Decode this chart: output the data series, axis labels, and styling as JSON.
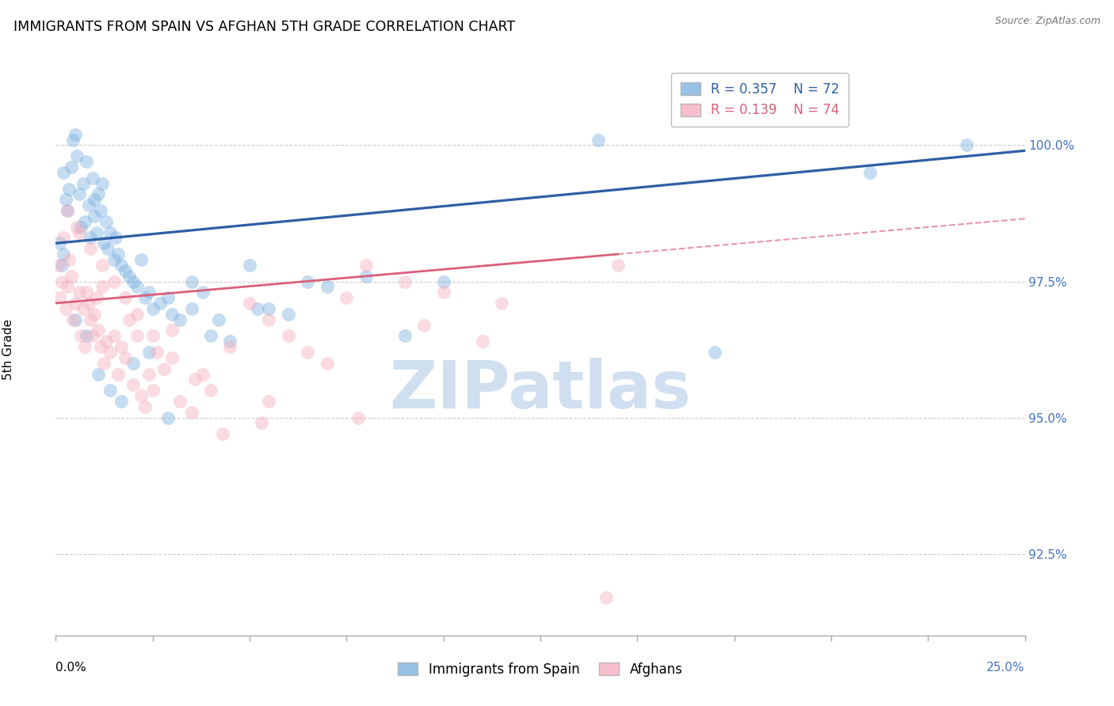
{
  "title": "IMMIGRANTS FROM SPAIN VS AFGHAN 5TH GRADE CORRELATION CHART",
  "source": "Source: ZipAtlas.com",
  "ylabel": "5th Grade",
  "xlim": [
    0.0,
    25.0
  ],
  "ylim": [
    91.0,
    101.5
  ],
  "yticks": [
    92.5,
    95.0,
    97.5,
    100.0
  ],
  "ytick_labels": [
    "92.5%",
    "95.0%",
    "97.5%",
    "100.0%"
  ],
  "xtick_positions": [
    0,
    2.5,
    5.0,
    7.5,
    10.0,
    12.5,
    15.0,
    17.5,
    20.0,
    22.5,
    25.0
  ],
  "legend_r_blue": "R = 0.357",
  "legend_n_blue": "N = 72",
  "legend_r_pink": "R = 0.139",
  "legend_n_pink": "N = 74",
  "legend_label_blue": "Immigrants from Spain",
  "legend_label_pink": "Afghans",
  "blue_face_color": "#7fb3e0",
  "pink_face_color": "#f5b0c0",
  "blue_line_color": "#2e5fa3",
  "pink_line_color": "#d9607a",
  "axis_tick_color": "#4472c4",
  "watermark_color": "#d0dff0",
  "blue_scatter_x": [
    0.1,
    0.15,
    0.2,
    0.2,
    0.25,
    0.3,
    0.35,
    0.4,
    0.45,
    0.5,
    0.55,
    0.6,
    0.65,
    0.7,
    0.75,
    0.8,
    0.85,
    0.9,
    0.95,
    1.0,
    1.0,
    1.05,
    1.1,
    1.15,
    1.2,
    1.25,
    1.3,
    1.35,
    1.4,
    1.5,
    1.55,
    1.6,
    1.7,
    1.8,
    1.9,
    2.0,
    2.1,
    2.2,
    2.3,
    2.4,
    2.5,
    2.7,
    2.9,
    3.0,
    3.2,
    3.5,
    3.8,
    4.0,
    4.5,
    5.0,
    5.5,
    6.0,
    6.5,
    7.0,
    8.0,
    9.0,
    10.0,
    14.0,
    17.0,
    21.0,
    23.5,
    0.5,
    0.8,
    1.1,
    1.4,
    1.7,
    2.0,
    2.4,
    2.9,
    3.5,
    4.2,
    5.2
  ],
  "blue_scatter_y": [
    98.2,
    97.8,
    99.5,
    98.0,
    99.0,
    98.8,
    99.2,
    99.6,
    100.1,
    100.2,
    99.8,
    99.1,
    98.5,
    99.3,
    98.6,
    99.7,
    98.9,
    98.3,
    99.4,
    98.7,
    99.0,
    98.4,
    99.1,
    98.8,
    99.3,
    98.2,
    98.6,
    98.1,
    98.4,
    97.9,
    98.3,
    98.0,
    97.8,
    97.7,
    97.6,
    97.5,
    97.4,
    97.9,
    97.2,
    97.3,
    97.0,
    97.1,
    97.2,
    96.9,
    96.8,
    97.0,
    97.3,
    96.5,
    96.4,
    97.8,
    97.0,
    96.9,
    97.5,
    97.4,
    97.6,
    96.5,
    97.5,
    100.1,
    96.2,
    99.5,
    100.0,
    96.8,
    96.5,
    95.8,
    95.5,
    95.3,
    96.0,
    96.2,
    95.0,
    97.5,
    96.8,
    97.0
  ],
  "pink_scatter_x": [
    0.05,
    0.1,
    0.15,
    0.2,
    0.25,
    0.3,
    0.35,
    0.4,
    0.45,
    0.5,
    0.55,
    0.6,
    0.65,
    0.7,
    0.75,
    0.8,
    0.85,
    0.9,
    0.95,
    1.0,
    1.05,
    1.1,
    1.15,
    1.2,
    1.25,
    1.3,
    1.4,
    1.5,
    1.6,
    1.7,
    1.8,
    1.9,
    2.0,
    2.1,
    2.2,
    2.3,
    2.4,
    2.5,
    2.6,
    2.8,
    3.0,
    3.2,
    3.5,
    3.8,
    4.0,
    4.5,
    5.0,
    5.5,
    6.0,
    6.5,
    7.0,
    8.0,
    9.0,
    10.0,
    11.5,
    14.5,
    0.3,
    0.6,
    0.9,
    1.2,
    1.5,
    1.8,
    2.1,
    2.5,
    3.0,
    3.6,
    4.3,
    5.3,
    7.5,
    9.5,
    11.0,
    5.5,
    7.8,
    14.2
  ],
  "pink_scatter_y": [
    97.8,
    97.2,
    97.5,
    98.3,
    97.0,
    97.4,
    97.9,
    97.6,
    96.8,
    97.1,
    98.5,
    97.3,
    96.5,
    97.0,
    96.3,
    97.3,
    97.1,
    96.8,
    96.5,
    96.9,
    97.2,
    96.6,
    96.3,
    97.4,
    96.0,
    96.4,
    96.2,
    96.5,
    95.8,
    96.3,
    96.1,
    96.8,
    95.6,
    96.5,
    95.4,
    95.2,
    95.8,
    95.5,
    96.2,
    95.9,
    96.6,
    95.3,
    95.1,
    95.8,
    95.5,
    96.3,
    97.1,
    96.8,
    96.5,
    96.2,
    96.0,
    97.8,
    97.5,
    97.3,
    97.1,
    97.8,
    98.8,
    98.4,
    98.1,
    97.8,
    97.5,
    97.2,
    96.9,
    96.5,
    96.1,
    95.7,
    94.7,
    94.9,
    97.2,
    96.7,
    96.4,
    95.3,
    95.0,
    91.7
  ]
}
